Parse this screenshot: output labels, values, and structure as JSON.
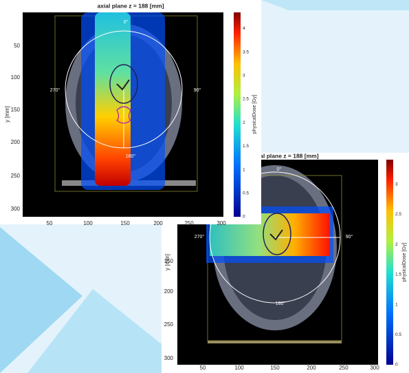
{
  "panels": [
    {
      "title": "axial plane z = 188 [mm]",
      "y_label": "y [mm]",
      "colorbar_label": "physicalDose [Gy]",
      "x_ticks": [
        "50",
        "100",
        "150",
        "200",
        "250",
        "300"
      ],
      "y_ticks": [
        "50",
        "100",
        "150",
        "200",
        "250",
        "300"
      ],
      "colorbar_ticks": [
        "0",
        "0.5",
        "1",
        "1.5",
        "2",
        "2.5",
        "3",
        "3.5",
        "4"
      ],
      "angles": [
        "0°",
        "90°",
        "180°",
        "270°"
      ]
    },
    {
      "title": "axial plane z = 188 [mm]",
      "y_label": "y [mm]",
      "colorbar_label": "physicalDose [Gy]",
      "x_ticks": [
        "50",
        "100",
        "150",
        "200",
        "250",
        "300"
      ],
      "y_ticks": [
        "150",
        "200",
        "250",
        "300"
      ],
      "colorbar_ticks": [
        "0",
        "0.5",
        "1",
        "1.5",
        "2",
        "2.5",
        "3"
      ],
      "angles": [
        "0°",
        "90°",
        "180°",
        "270°"
      ]
    }
  ]
}
